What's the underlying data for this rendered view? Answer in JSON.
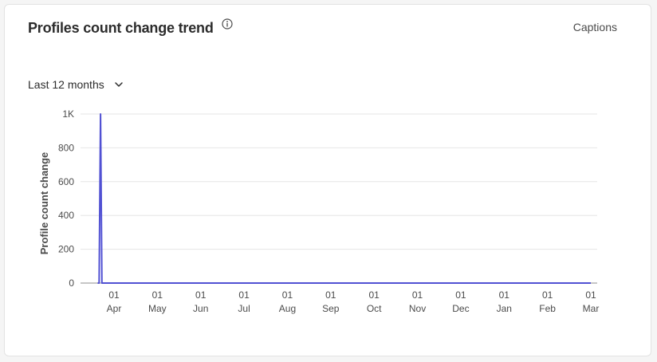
{
  "card": {
    "title": "Profiles count change trend",
    "captions_label": "Captions",
    "info_icon": "info-circle-icon",
    "range_label": "Last 12 months",
    "range_icon": "chevron-down-icon"
  },
  "colors": {
    "line": "#5151d3",
    "grid": "#e6e6e6",
    "axis": "#8e8e8e"
  },
  "chart_data": {
    "type": "line",
    "title": "Profiles count change trend",
    "ylabel": "Profile count change",
    "xlabel": "",
    "ylim": [
      0,
      1000
    ],
    "y_ticks": [
      {
        "value": 0,
        "label": "0"
      },
      {
        "value": 200,
        "label": "200"
      },
      {
        "value": 400,
        "label": "400"
      },
      {
        "value": 600,
        "label": "600"
      },
      {
        "value": 800,
        "label": "800"
      },
      {
        "value": 1000,
        "label": "1K"
      }
    ],
    "x_ticks": [
      {
        "day": "01",
        "month": "Apr"
      },
      {
        "day": "01",
        "month": "May"
      },
      {
        "day": "01",
        "month": "Jun"
      },
      {
        "day": "01",
        "month": "Jul"
      },
      {
        "day": "01",
        "month": "Aug"
      },
      {
        "day": "01",
        "month": "Sep"
      },
      {
        "day": "01",
        "month": "Oct"
      },
      {
        "day": "01",
        "month": "Nov"
      },
      {
        "day": "01",
        "month": "Dec"
      },
      {
        "day": "01",
        "month": "Jan"
      },
      {
        "day": "01",
        "month": "Feb"
      },
      {
        "day": "01",
        "month": "Mar"
      }
    ],
    "grid": true,
    "legend": "none",
    "series": [
      {
        "points": [
          {
            "x": "Mar 20",
            "y": 0
          },
          {
            "x": "Mar 21",
            "y": 0
          },
          {
            "x": "Mar 22",
            "y": 1000
          },
          {
            "x": "Mar 23",
            "y": 0
          },
          {
            "x": "Apr 01",
            "y": 0
          },
          {
            "x": "Mar 01",
            "y": 0
          }
        ]
      }
    ]
  }
}
